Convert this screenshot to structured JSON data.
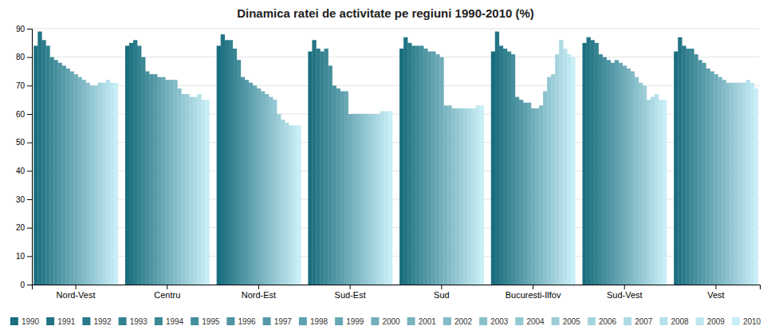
{
  "chart_data": {
    "type": "bar",
    "title": "Dinamica ratei de activitate pe regiuni 1990-2010 (%)",
    "categories": [
      "Nord-Vest",
      "Centru",
      "Nord-Est",
      "Sud-Est",
      "Sud",
      "Bucuresti-Ilfov",
      "Sud-Vest",
      "Vest"
    ],
    "series": [
      {
        "name": "1990",
        "color": "#1a6e7e",
        "values": [
          84,
          84,
          84,
          82,
          83,
          82,
          85,
          82
        ]
      },
      {
        "name": "1991",
        "color": "#227484",
        "values": [
          89,
          85,
          88,
          86,
          87,
          89,
          87,
          87
        ]
      },
      {
        "name": "1992",
        "color": "#2b7a8a",
        "values": [
          86,
          86,
          86,
          83,
          85,
          84,
          86,
          84
        ]
      },
      {
        "name": "1993",
        "color": "#348190",
        "values": [
          84,
          84,
          86,
          82,
          84,
          83,
          85,
          83
        ]
      },
      {
        "name": "1994",
        "color": "#3c8796",
        "values": [
          80,
          80,
          83,
          83,
          84,
          82,
          81,
          83
        ]
      },
      {
        "name": "1995",
        "color": "#458e9c",
        "values": [
          79,
          75,
          79,
          77,
          84,
          81,
          80,
          81
        ]
      },
      {
        "name": "1996",
        "color": "#4e94a2",
        "values": [
          78,
          74,
          73,
          70,
          83,
          66,
          79,
          79
        ]
      },
      {
        "name": "1997",
        "color": "#569aa8",
        "values": [
          77,
          74,
          72,
          69,
          82,
          65,
          78,
          78
        ]
      },
      {
        "name": "1998",
        "color": "#5fa1ae",
        "values": [
          76,
          73,
          71,
          68,
          82,
          64,
          79,
          76
        ]
      },
      {
        "name": "1999",
        "color": "#68a7b4",
        "values": [
          75,
          73,
          70,
          68,
          81,
          64,
          78,
          75
        ]
      },
      {
        "name": "2000",
        "color": "#71aeba",
        "values": [
          74,
          72,
          69,
          60,
          80,
          62,
          77,
          74
        ]
      },
      {
        "name": "2001",
        "color": "#79b4c0",
        "values": [
          73,
          72,
          68,
          60,
          63,
          62,
          76,
          73
        ]
      },
      {
        "name": "2002",
        "color": "#82bac6",
        "values": [
          72,
          72,
          67,
          60,
          63,
          63,
          75,
          72
        ]
      },
      {
        "name": "2003",
        "color": "#8bc1cc",
        "values": [
          71,
          69,
          66,
          60,
          62,
          68,
          73,
          71
        ]
      },
      {
        "name": "2004",
        "color": "#93c7d2",
        "values": [
          70,
          67,
          65,
          60,
          62,
          73,
          71,
          71
        ]
      },
      {
        "name": "2005",
        "color": "#9cced8",
        "values": [
          70,
          67,
          60,
          60,
          62,
          74,
          70,
          71
        ]
      },
      {
        "name": "2006",
        "color": "#a5d4de",
        "values": [
          71,
          66,
          58,
          60,
          62,
          81,
          65,
          71
        ]
      },
      {
        "name": "2007",
        "color": "#addae4",
        "values": [
          71,
          66,
          57,
          60,
          62,
          86,
          66,
          71
        ]
      },
      {
        "name": "2008",
        "color": "#b6e1ea",
        "values": [
          72,
          67,
          56,
          61,
          62,
          83,
          67,
          72
        ]
      },
      {
        "name": "2009",
        "color": "#bfe7f0",
        "values": [
          71,
          65,
          56,
          61,
          63,
          81,
          65,
          71
        ]
      },
      {
        "name": "2010",
        "color": "#c8eef6",
        "values": [
          71,
          65,
          56,
          61,
          63,
          80,
          65,
          69
        ]
      }
    ],
    "ylim": [
      0,
      90
    ],
    "yticks": [
      0,
      10,
      20,
      30,
      40,
      50,
      60,
      70,
      80,
      90
    ],
    "grid": true,
    "legend": "bottom"
  }
}
